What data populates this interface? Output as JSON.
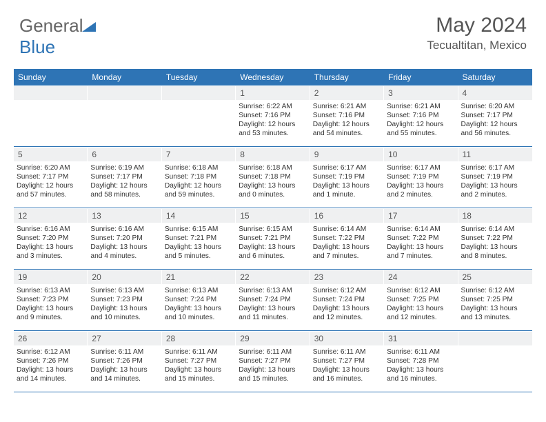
{
  "logo": {
    "text1": "General",
    "text2": "Blue"
  },
  "title": "May 2024",
  "location": "Tecualtitan, Mexico",
  "colors": {
    "accent": "#2e74b5",
    "header_bg": "#2e74b5",
    "header_text": "#ffffff",
    "daynum_bg": "#eff0f1",
    "text": "#333333",
    "title_text": "#555555"
  },
  "typography": {
    "title_fontsize": 30,
    "location_fontsize": 17,
    "header_fontsize": 12,
    "daynum_fontsize": 12,
    "detail_fontsize": 10.2
  },
  "layout": {
    "columns": 7,
    "rows": 5,
    "cell_min_height": 88
  },
  "day_names": [
    "Sunday",
    "Monday",
    "Tuesday",
    "Wednesday",
    "Thursday",
    "Friday",
    "Saturday"
  ],
  "weeks": [
    [
      {
        "n": "",
        "sr": "",
        "ss": "",
        "dl": ""
      },
      {
        "n": "",
        "sr": "",
        "ss": "",
        "dl": ""
      },
      {
        "n": "",
        "sr": "",
        "ss": "",
        "dl": ""
      },
      {
        "n": "1",
        "sr": "Sunrise: 6:22 AM",
        "ss": "Sunset: 7:16 PM",
        "dl": "Daylight: 12 hours and 53 minutes."
      },
      {
        "n": "2",
        "sr": "Sunrise: 6:21 AM",
        "ss": "Sunset: 7:16 PM",
        "dl": "Daylight: 12 hours and 54 minutes."
      },
      {
        "n": "3",
        "sr": "Sunrise: 6:21 AM",
        "ss": "Sunset: 7:16 PM",
        "dl": "Daylight: 12 hours and 55 minutes."
      },
      {
        "n": "4",
        "sr": "Sunrise: 6:20 AM",
        "ss": "Sunset: 7:17 PM",
        "dl": "Daylight: 12 hours and 56 minutes."
      }
    ],
    [
      {
        "n": "5",
        "sr": "Sunrise: 6:20 AM",
        "ss": "Sunset: 7:17 PM",
        "dl": "Daylight: 12 hours and 57 minutes."
      },
      {
        "n": "6",
        "sr": "Sunrise: 6:19 AM",
        "ss": "Sunset: 7:17 PM",
        "dl": "Daylight: 12 hours and 58 minutes."
      },
      {
        "n": "7",
        "sr": "Sunrise: 6:18 AM",
        "ss": "Sunset: 7:18 PM",
        "dl": "Daylight: 12 hours and 59 minutes."
      },
      {
        "n": "8",
        "sr": "Sunrise: 6:18 AM",
        "ss": "Sunset: 7:18 PM",
        "dl": "Daylight: 13 hours and 0 minutes."
      },
      {
        "n": "9",
        "sr": "Sunrise: 6:17 AM",
        "ss": "Sunset: 7:19 PM",
        "dl": "Daylight: 13 hours and 1 minute."
      },
      {
        "n": "10",
        "sr": "Sunrise: 6:17 AM",
        "ss": "Sunset: 7:19 PM",
        "dl": "Daylight: 13 hours and 2 minutes."
      },
      {
        "n": "11",
        "sr": "Sunrise: 6:17 AM",
        "ss": "Sunset: 7:19 PM",
        "dl": "Daylight: 13 hours and 2 minutes."
      }
    ],
    [
      {
        "n": "12",
        "sr": "Sunrise: 6:16 AM",
        "ss": "Sunset: 7:20 PM",
        "dl": "Daylight: 13 hours and 3 minutes."
      },
      {
        "n": "13",
        "sr": "Sunrise: 6:16 AM",
        "ss": "Sunset: 7:20 PM",
        "dl": "Daylight: 13 hours and 4 minutes."
      },
      {
        "n": "14",
        "sr": "Sunrise: 6:15 AM",
        "ss": "Sunset: 7:21 PM",
        "dl": "Daylight: 13 hours and 5 minutes."
      },
      {
        "n": "15",
        "sr": "Sunrise: 6:15 AM",
        "ss": "Sunset: 7:21 PM",
        "dl": "Daylight: 13 hours and 6 minutes."
      },
      {
        "n": "16",
        "sr": "Sunrise: 6:14 AM",
        "ss": "Sunset: 7:22 PM",
        "dl": "Daylight: 13 hours and 7 minutes."
      },
      {
        "n": "17",
        "sr": "Sunrise: 6:14 AM",
        "ss": "Sunset: 7:22 PM",
        "dl": "Daylight: 13 hours and 7 minutes."
      },
      {
        "n": "18",
        "sr": "Sunrise: 6:14 AM",
        "ss": "Sunset: 7:22 PM",
        "dl": "Daylight: 13 hours and 8 minutes."
      }
    ],
    [
      {
        "n": "19",
        "sr": "Sunrise: 6:13 AM",
        "ss": "Sunset: 7:23 PM",
        "dl": "Daylight: 13 hours and 9 minutes."
      },
      {
        "n": "20",
        "sr": "Sunrise: 6:13 AM",
        "ss": "Sunset: 7:23 PM",
        "dl": "Daylight: 13 hours and 10 minutes."
      },
      {
        "n": "21",
        "sr": "Sunrise: 6:13 AM",
        "ss": "Sunset: 7:24 PM",
        "dl": "Daylight: 13 hours and 10 minutes."
      },
      {
        "n": "22",
        "sr": "Sunrise: 6:13 AM",
        "ss": "Sunset: 7:24 PM",
        "dl": "Daylight: 13 hours and 11 minutes."
      },
      {
        "n": "23",
        "sr": "Sunrise: 6:12 AM",
        "ss": "Sunset: 7:24 PM",
        "dl": "Daylight: 13 hours and 12 minutes."
      },
      {
        "n": "24",
        "sr": "Sunrise: 6:12 AM",
        "ss": "Sunset: 7:25 PM",
        "dl": "Daylight: 13 hours and 12 minutes."
      },
      {
        "n": "25",
        "sr": "Sunrise: 6:12 AM",
        "ss": "Sunset: 7:25 PM",
        "dl": "Daylight: 13 hours and 13 minutes."
      }
    ],
    [
      {
        "n": "26",
        "sr": "Sunrise: 6:12 AM",
        "ss": "Sunset: 7:26 PM",
        "dl": "Daylight: 13 hours and 14 minutes."
      },
      {
        "n": "27",
        "sr": "Sunrise: 6:11 AM",
        "ss": "Sunset: 7:26 PM",
        "dl": "Daylight: 13 hours and 14 minutes."
      },
      {
        "n": "28",
        "sr": "Sunrise: 6:11 AM",
        "ss": "Sunset: 7:27 PM",
        "dl": "Daylight: 13 hours and 15 minutes."
      },
      {
        "n": "29",
        "sr": "Sunrise: 6:11 AM",
        "ss": "Sunset: 7:27 PM",
        "dl": "Daylight: 13 hours and 15 minutes."
      },
      {
        "n": "30",
        "sr": "Sunrise: 6:11 AM",
        "ss": "Sunset: 7:27 PM",
        "dl": "Daylight: 13 hours and 16 minutes."
      },
      {
        "n": "31",
        "sr": "Sunrise: 6:11 AM",
        "ss": "Sunset: 7:28 PM",
        "dl": "Daylight: 13 hours and 16 minutes."
      },
      {
        "n": "",
        "sr": "",
        "ss": "",
        "dl": ""
      }
    ]
  ]
}
